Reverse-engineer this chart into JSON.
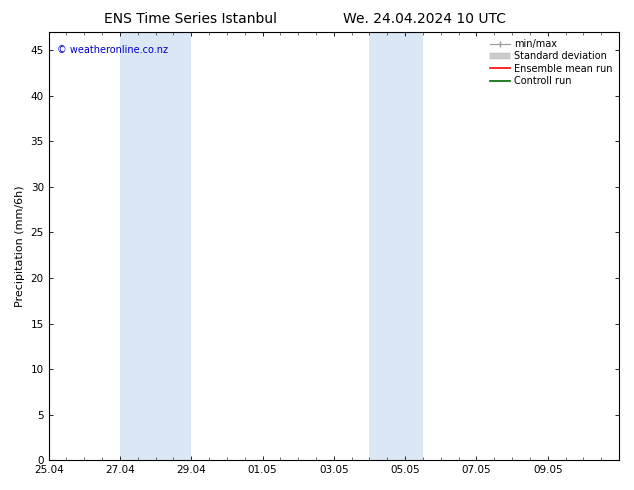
{
  "title_left": "ENS Time Series Istanbul",
  "title_right": "We. 24.04.2024 10 UTC",
  "ylabel": "Precipitation (mm/6h)",
  "watermark": "© weatheronline.co.nz",
  "watermark_color": "#0000cc",
  "ylim": [
    0,
    47
  ],
  "yticks": [
    0,
    5,
    10,
    15,
    20,
    25,
    30,
    35,
    40,
    45
  ],
  "xlim": [
    0,
    16
  ],
  "x_tick_labels": [
    "25.04",
    "27.04",
    "29.04",
    "01.05",
    "03.05",
    "05.05",
    "07.05",
    "09.05"
  ],
  "x_tick_positions": [
    0,
    2,
    4,
    6,
    8,
    10,
    12,
    14
  ],
  "shaded_bands": [
    {
      "x_start": 2,
      "x_end": 4,
      "color": "#dae8f5"
    },
    {
      "x_start": 9,
      "x_end": 10.5,
      "color": "#dae8f5"
    }
  ],
  "bg_color": "#ffffff",
  "plot_bg_color": "#ffffff",
  "border_color": "#000000",
  "title_fontsize": 10,
  "tick_fontsize": 7.5,
  "label_fontsize": 8,
  "watermark_fontsize": 7,
  "legend_fontsize": 7
}
